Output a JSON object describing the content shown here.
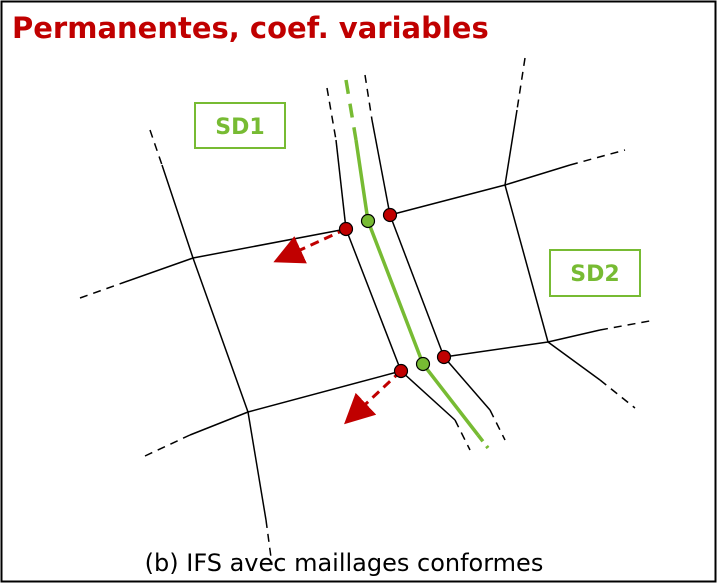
{
  "title": "Permanentes, coef. variables",
  "labels": {
    "sd1": "SD1",
    "sd2": "SD2"
  },
  "caption": "(b) IFS avec maillages conformes"
}
